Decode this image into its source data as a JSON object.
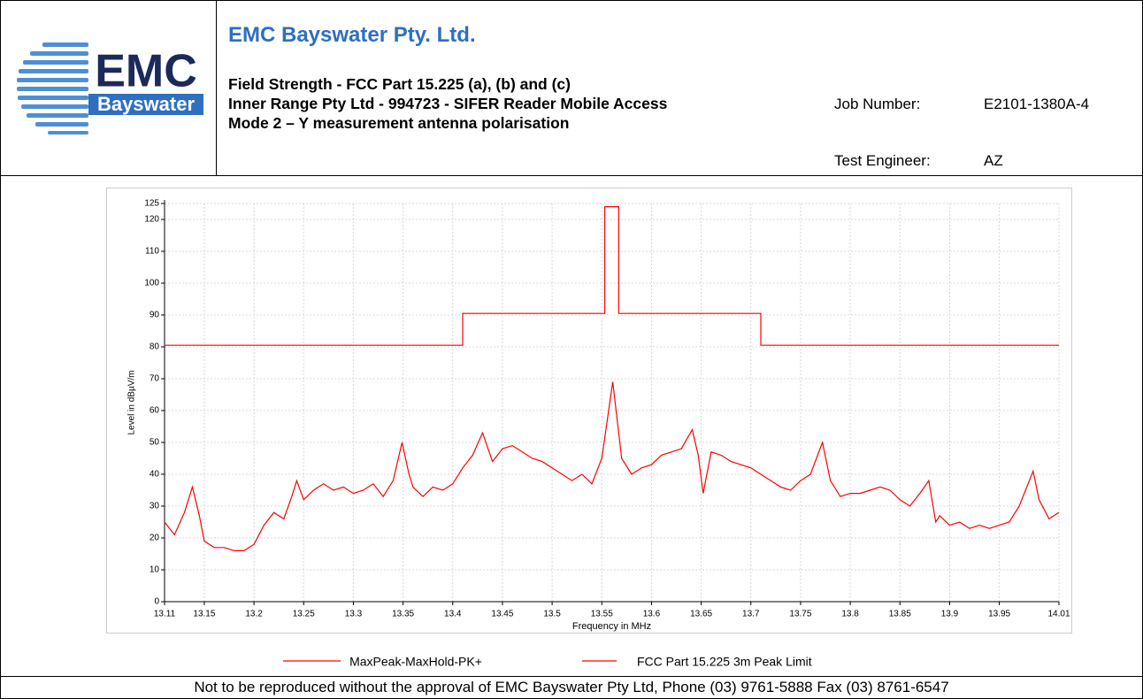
{
  "header": {
    "logo_text": "EMC",
    "logo_subtext": "Bayswater",
    "company": "EMC Bayswater Pty. Ltd.",
    "lines": [
      "Field Strength - FCC Part 15.225 (a), (b) and (c)",
      "Inner Range Pty Ltd - 994723 - SIFER Reader Mobile Access",
      "Mode 2 – Y measurement antenna polarisation"
    ],
    "job_label": "Job Number:",
    "job_value": "E2101-1380A-4",
    "engineer_label": "Test Engineer:",
    "engineer_value": "AZ"
  },
  "chart_data": {
    "type": "line",
    "x_label": "Frequency in MHz",
    "y_label": "Level in dBµV/m",
    "xlim": [
      13.11,
      14.01
    ],
    "ylim": [
      0,
      125
    ],
    "xticks": [
      13.11,
      13.15,
      13.2,
      13.25,
      13.3,
      13.35,
      13.4,
      13.45,
      13.5,
      13.55,
      13.6,
      13.65,
      13.7,
      13.75,
      13.8,
      13.85,
      13.9,
      13.95,
      14.01
    ],
    "yticks": [
      0,
      10,
      20,
      30,
      40,
      50,
      60,
      70,
      80,
      90,
      100,
      110,
      120,
      125
    ],
    "grid": true,
    "series": [
      {
        "name": "MaxPeak-MaxHold-PK+",
        "color": "#ff0000",
        "x": [
          13.11,
          13.12,
          13.13,
          13.138,
          13.145,
          13.15,
          13.16,
          13.17,
          13.18,
          13.19,
          13.2,
          13.21,
          13.22,
          13.23,
          13.238,
          13.243,
          13.25,
          13.26,
          13.27,
          13.28,
          13.29,
          13.3,
          13.31,
          13.32,
          13.33,
          13.34,
          13.349,
          13.356,
          13.36,
          13.37,
          13.38,
          13.39,
          13.4,
          13.41,
          13.42,
          13.43,
          13.44,
          13.45,
          13.46,
          13.47,
          13.48,
          13.49,
          13.5,
          13.51,
          13.52,
          13.53,
          13.54,
          13.55,
          13.561,
          13.57,
          13.58,
          13.59,
          13.6,
          13.61,
          13.62,
          13.63,
          13.641,
          13.647,
          13.652,
          13.66,
          13.67,
          13.68,
          13.69,
          13.7,
          13.71,
          13.72,
          13.73,
          13.74,
          13.75,
          13.76,
          13.772,
          13.78,
          13.79,
          13.8,
          13.81,
          13.82,
          13.83,
          13.84,
          13.85,
          13.86,
          13.87,
          13.879,
          13.886,
          13.89,
          13.9,
          13.91,
          13.92,
          13.93,
          13.94,
          13.95,
          13.96,
          13.97,
          13.984,
          13.99,
          14,
          14.01
        ],
        "values": [
          25,
          21,
          28,
          36,
          27,
          19,
          17,
          17,
          16,
          16,
          18,
          24,
          28,
          26,
          33,
          38,
          32,
          35,
          37,
          35,
          36,
          34,
          35,
          37,
          33,
          38,
          50,
          40,
          36,
          33,
          36,
          35,
          37,
          42,
          46,
          53,
          44,
          48,
          49,
          47,
          45,
          44,
          42,
          40,
          38,
          40,
          37,
          45,
          69,
          45,
          40,
          42,
          43,
          46,
          47,
          48,
          54,
          46,
          34,
          47,
          46,
          44,
          43,
          42,
          40,
          38,
          36,
          35,
          38,
          40,
          50,
          38,
          33,
          34,
          34,
          35,
          36,
          35,
          32,
          30,
          34,
          38,
          25,
          27,
          24,
          25,
          23,
          24,
          23,
          24,
          25,
          30,
          41,
          32,
          26,
          28
        ]
      },
      {
        "name": "FCC Part 15.225 3m Peak Limit",
        "color": "#ff0000",
        "x": [
          13.11,
          13.41,
          13.41,
          13.553,
          13.553,
          13.567,
          13.567,
          13.71,
          13.71,
          14.01
        ],
        "values": [
          80.5,
          80.5,
          90.5,
          90.5,
          124,
          124,
          90.5,
          90.5,
          80.5,
          80.5
        ]
      }
    ]
  },
  "footer": "Not to be reproduced without the approval of EMC Bayswater Pty Ltd, Phone (03) 9761-5888 Fax (03) 8761-6547"
}
